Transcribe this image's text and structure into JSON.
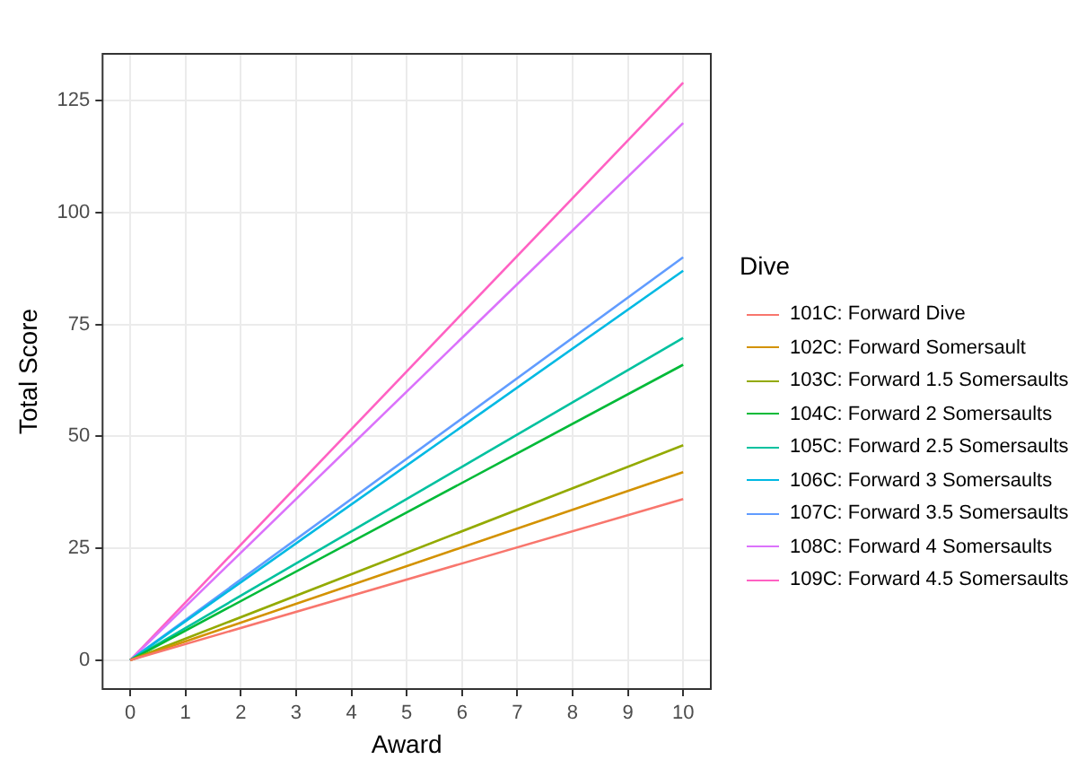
{
  "chart_data": {
    "type": "line",
    "xlabel": "Award",
    "ylabel": "Total Score",
    "legend_title": "Dive",
    "x": [
      0,
      10
    ],
    "xlim": [
      -0.5,
      10.5
    ],
    "xticks": [
      0,
      1,
      2,
      3,
      4,
      5,
      6,
      7,
      8,
      9,
      10
    ],
    "ylim": [
      -6.45,
      135.45
    ],
    "yticks": [
      0,
      25,
      50,
      75,
      100,
      125
    ],
    "grid": true,
    "legend": "right",
    "marker": "none",
    "line_style": "solid",
    "series": [
      {
        "name": "101C: Forward Dive",
        "color": "#f8766d",
        "values": [
          0,
          36
        ]
      },
      {
        "name": "102C: Forward Somersault",
        "color": "#d39200",
        "values": [
          0,
          42
        ]
      },
      {
        "name": "103C: Forward 1.5 Somersaults",
        "color": "#93aa00",
        "values": [
          0,
          48
        ]
      },
      {
        "name": "104C: Forward 2 Somersaults",
        "color": "#00ba38",
        "values": [
          0,
          66
        ]
      },
      {
        "name": "105C: Forward 2.5 Somersaults",
        "color": "#00c19f",
        "values": [
          0,
          72
        ]
      },
      {
        "name": "106C: Forward 3 Somersaults",
        "color": "#00b9e3",
        "values": [
          0,
          87
        ]
      },
      {
        "name": "107C: Forward 3.5 Somersaults",
        "color": "#619cff",
        "values": [
          0,
          90
        ]
      },
      {
        "name": "108C: Forward 4 Somersaults",
        "color": "#db72fb",
        "values": [
          0,
          120
        ]
      },
      {
        "name": "109C: Forward 4.5 Somersaults",
        "color": "#ff61c3",
        "values": [
          0,
          129
        ]
      }
    ]
  }
}
